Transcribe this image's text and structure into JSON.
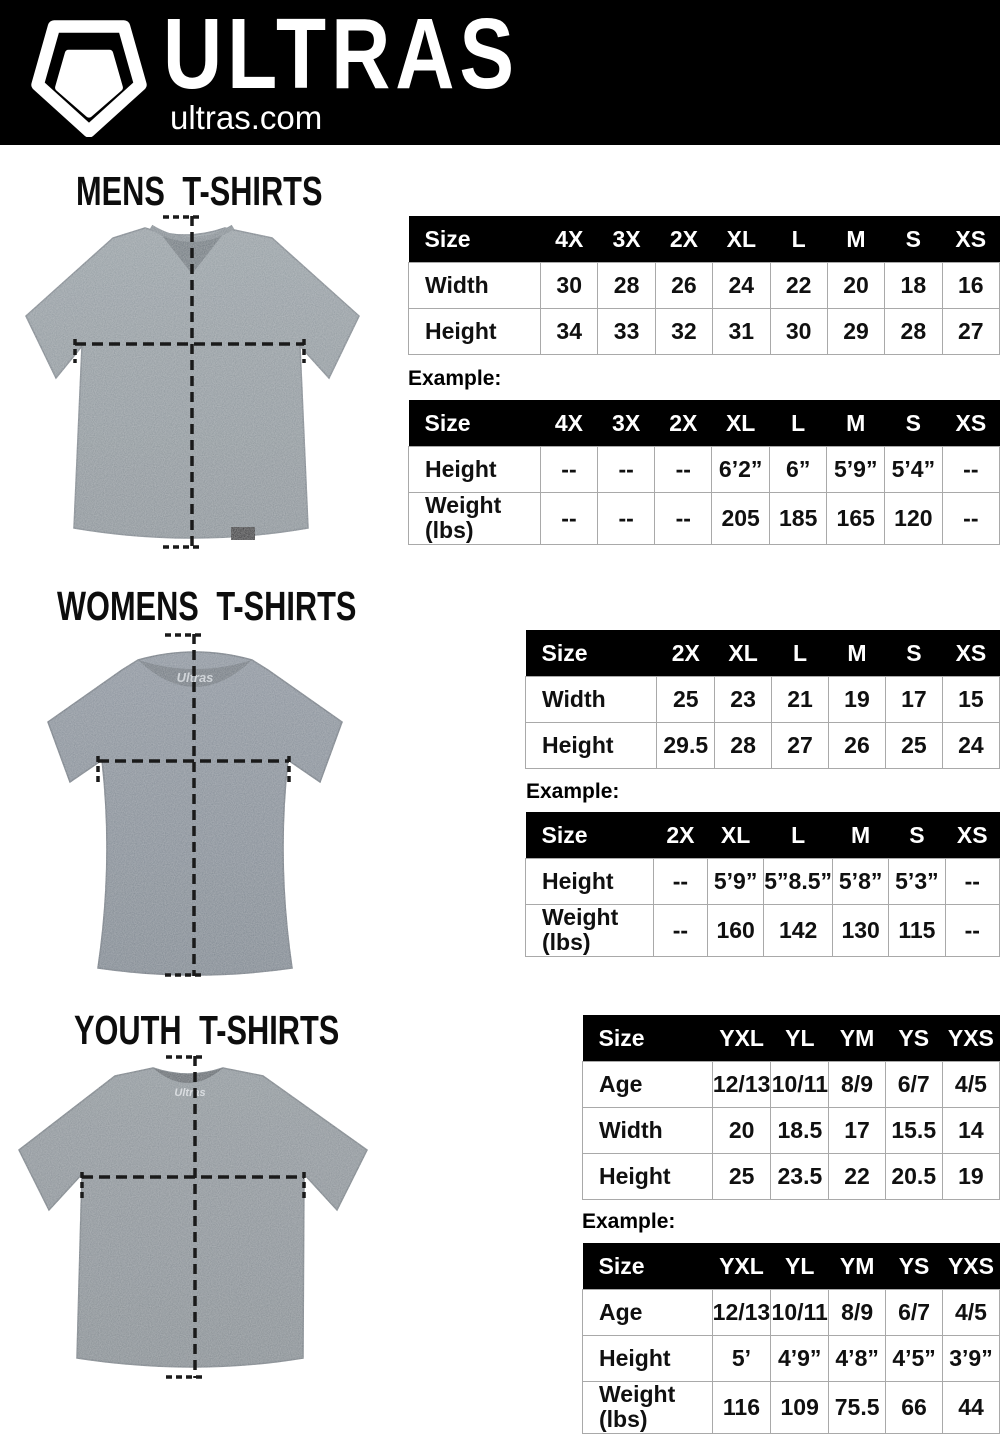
{
  "header": {
    "brand": "ULTRAS",
    "site": "ultras.com",
    "logo_icon": "ultras-pentagon-shield-logo"
  },
  "colors": {
    "header_bg": "#000000",
    "table_header_bg": "#000000",
    "table_header_text": "#ffffff",
    "table_border": "#a9a9a9",
    "shirt_mens": "#8d969c",
    "shirt_womens": "#828b95",
    "shirt_youth": "#878f95",
    "dash_line": "#1a1a1a"
  },
  "sections": [
    {
      "id": "mens",
      "title": "MENS T-SHIRTS",
      "example_label": "Example:",
      "size_table": {
        "columns": [
          "Size",
          "4X",
          "3X",
          "2X",
          "XL",
          "L",
          "M",
          "S",
          "XS"
        ],
        "rows": [
          {
            "label": "Width",
            "values": [
              "30",
              "28",
              "26",
              "24",
              "22",
              "20",
              "18",
              "16"
            ]
          },
          {
            "label": "Height",
            "values": [
              "34",
              "33",
              "32",
              "31",
              "30",
              "29",
              "28",
              "27"
            ]
          }
        ]
      },
      "example_table": {
        "columns": [
          "Size",
          "4X",
          "3X",
          "2X",
          "XL",
          "L",
          "M",
          "S",
          "XS"
        ],
        "rows": [
          {
            "label": "Height",
            "values": [
              "--",
              "--",
              "--",
              "6’2”",
              "6”",
              "5’9”",
              "5’4”",
              "--"
            ]
          },
          {
            "label": "Weight\n(lbs)",
            "values": [
              "--",
              "--",
              "--",
              "205",
              "185",
              "165",
              "120",
              "--"
            ]
          }
        ]
      }
    },
    {
      "id": "womens",
      "title": "WOMENS T-SHIRTS",
      "example_label": "Example:",
      "size_table": {
        "columns": [
          "Size",
          "2X",
          "XL",
          "L",
          "M",
          "S",
          "XS"
        ],
        "rows": [
          {
            "label": "Width",
            "values": [
              "25",
              "23",
              "21",
              "19",
              "17",
              "15"
            ]
          },
          {
            "label": "Height",
            "values": [
              "29.5",
              "28",
              "27",
              "26",
              "25",
              "24"
            ]
          }
        ]
      },
      "example_table": {
        "columns": [
          "Size",
          "2X",
          "XL",
          "L",
          "M",
          "S",
          "XS"
        ],
        "rows": [
          {
            "label": "Height",
            "values": [
              "--",
              "5’9”",
              "5”8.5”",
              "5’8”",
              "5’3”",
              "--"
            ]
          },
          {
            "label": "Weight\n(lbs)",
            "values": [
              "--",
              "160",
              "142",
              "130",
              "115",
              "--"
            ]
          }
        ]
      }
    },
    {
      "id": "youth",
      "title": "YOUTH T-SHIRTS",
      "example_label": "Example:",
      "size_table": {
        "columns": [
          "Size",
          "YXL",
          "YL",
          "YM",
          "YS",
          "YXS"
        ],
        "rows": [
          {
            "label": "Age",
            "values": [
              "12/13",
              "10/11",
              "8/9",
              "6/7",
              "4/5"
            ]
          },
          {
            "label": "Width",
            "values": [
              "20",
              "18.5",
              "17",
              "15.5",
              "14"
            ]
          },
          {
            "label": "Height",
            "values": [
              "25",
              "23.5",
              "22",
              "20.5",
              "19"
            ]
          }
        ]
      },
      "example_table": {
        "columns": [
          "Size",
          "YXL",
          "YL",
          "YM",
          "YS",
          "YXS"
        ],
        "rows": [
          {
            "label": "Age",
            "values": [
              "12/13",
              "10/11",
              "8/9",
              "6/7",
              "4/5"
            ]
          },
          {
            "label": "Height",
            "values": [
              "5’",
              "4’9”",
              "4’8”",
              "4’5”",
              "3’9”"
            ]
          },
          {
            "label": "Weight\n(lbs)",
            "values": [
              "116",
              "109",
              "75.5",
              "66",
              "44"
            ]
          }
        ]
      }
    }
  ]
}
